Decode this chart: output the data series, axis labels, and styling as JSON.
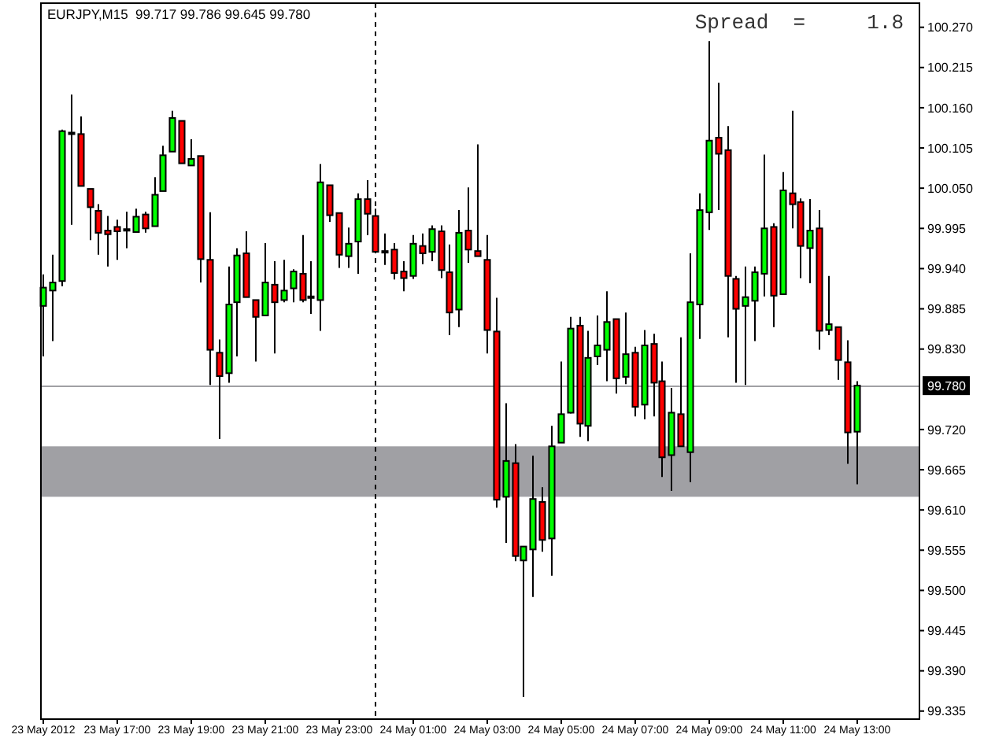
{
  "chart_data": {
    "type": "candlestick",
    "title": "EURJPY,M15  99.717 99.786 99.645 99.780",
    "annotations": [
      "Spread  =     1.8"
    ],
    "x": [
      "2012-05-23T15:00",
      "2012-05-23T15:15",
      "2012-05-23T15:30",
      "2012-05-23T15:45",
      "2012-05-23T16:00",
      "2012-05-23T16:15",
      "2012-05-23T16:30",
      "2012-05-23T16:45",
      "2012-05-23T17:00",
      "2012-05-23T17:15",
      "2012-05-23T17:30",
      "2012-05-23T17:45",
      "2012-05-23T18:00",
      "2012-05-23T18:15",
      "2012-05-23T18:30",
      "2012-05-23T18:45",
      "2012-05-23T19:00",
      "2012-05-23T19:15",
      "2012-05-23T19:30",
      "2012-05-23T19:45",
      "2012-05-23T20:00",
      "2012-05-23T20:15",
      "2012-05-23T20:30",
      "2012-05-23T20:45",
      "2012-05-23T21:00",
      "2012-05-23T21:15",
      "2012-05-23T21:30",
      "2012-05-23T21:45",
      "2012-05-23T22:00",
      "2012-05-23T22:15",
      "2012-05-23T22:30",
      "2012-05-23T22:45",
      "2012-05-23T23:00",
      "2012-05-23T23:15",
      "2012-05-23T23:30",
      "2012-05-23T23:45",
      "2012-05-24T00:00",
      "2012-05-24T00:15",
      "2012-05-24T00:30",
      "2012-05-24T00:45",
      "2012-05-24T01:00",
      "2012-05-24T01:15",
      "2012-05-24T01:30",
      "2012-05-24T01:45",
      "2012-05-24T02:00",
      "2012-05-24T02:15",
      "2012-05-24T02:30",
      "2012-05-24T02:45",
      "2012-05-24T03:00",
      "2012-05-24T03:15",
      "2012-05-24T03:30",
      "2012-05-24T03:45",
      "2012-05-24T04:00",
      "2012-05-24T04:15",
      "2012-05-24T04:30",
      "2012-05-24T04:45",
      "2012-05-24T05:00",
      "2012-05-24T05:15",
      "2012-05-24T05:30",
      "2012-05-24T05:45",
      "2012-05-24T06:00",
      "2012-05-24T06:15",
      "2012-05-24T06:30",
      "2012-05-24T06:45",
      "2012-05-24T07:00",
      "2012-05-24T07:15",
      "2012-05-24T07:30",
      "2012-05-24T07:45",
      "2012-05-24T08:00",
      "2012-05-24T08:15",
      "2012-05-24T08:30",
      "2012-05-24T08:45",
      "2012-05-24T09:00",
      "2012-05-24T09:15",
      "2012-05-24T09:30",
      "2012-05-24T09:45",
      "2012-05-24T10:00",
      "2012-05-24T10:15",
      "2012-05-24T10:30",
      "2012-05-24T10:45",
      "2012-05-24T11:00",
      "2012-05-24T11:15",
      "2012-05-24T11:30",
      "2012-05-24T11:45",
      "2012-05-24T12:00",
      "2012-05-24T12:15",
      "2012-05-24T12:30",
      "2012-05-24T12:45",
      "2012-05-24T13:00"
    ],
    "ohlc": [
      [
        99.889,
        99.932,
        99.82,
        99.914
      ],
      [
        99.91,
        99.959,
        99.841,
        99.921
      ],
      [
        99.923,
        100.13,
        99.916,
        100.128
      ],
      [
        100.126,
        100.178,
        100.0,
        100.126
      ],
      [
        100.124,
        100.148,
        100.053,
        100.053
      ],
      [
        100.049,
        100.049,
        99.979,
        100.024
      ],
      [
        100.019,
        100.028,
        99.959,
        99.989
      ],
      [
        99.992,
        100.012,
        99.943,
        99.987
      ],
      [
        99.997,
        100.007,
        99.952,
        99.991
      ],
      [
        99.994,
        100.018,
        99.968,
        99.994
      ],
      [
        99.99,
        100.022,
        99.99,
        100.011
      ],
      [
        100.014,
        100.018,
        99.989,
        99.995
      ],
      [
        99.998,
        100.065,
        99.998,
        100.041
      ],
      [
        100.046,
        100.108,
        100.046,
        100.095
      ],
      [
        100.1,
        100.156,
        100.1,
        100.146
      ],
      [
        100.142,
        100.142,
        100.084,
        100.084
      ],
      [
        100.081,
        100.117,
        100.081,
        100.09
      ],
      [
        100.094,
        100.094,
        99.921,
        99.953
      ],
      [
        99.952,
        100.017,
        99.781,
        99.829
      ],
      [
        99.825,
        99.843,
        99.707,
        99.793
      ],
      [
        99.797,
        99.943,
        99.784,
        99.891
      ],
      [
        99.894,
        99.968,
        99.82,
        99.958
      ],
      [
        99.961,
        99.991,
        99.901,
        99.901
      ],
      [
        99.897,
        99.897,
        99.813,
        99.874
      ],
      [
        99.876,
        99.975,
        99.876,
        99.921
      ],
      [
        99.918,
        99.95,
        99.824,
        99.894
      ],
      [
        99.897,
        99.952,
        99.894,
        99.91
      ],
      [
        99.913,
        99.939,
        99.894,
        99.936
      ],
      [
        99.933,
        99.986,
        99.894,
        99.897
      ],
      [
        99.902,
        99.95,
        99.878,
        99.902
      ],
      [
        99.897,
        100.083,
        99.855,
        100.058
      ],
      [
        100.054,
        100.054,
        100.004,
        100.013
      ],
      [
        100.016,
        100.016,
        99.941,
        99.959
      ],
      [
        99.957,
        99.996,
        99.941,
        99.974
      ],
      [
        99.977,
        100.043,
        99.933,
        100.035
      ],
      [
        100.035,
        100.061,
        99.986,
        100.015
      ],
      [
        100.012,
        100.022,
        99.963,
        99.963
      ],
      [
        99.964,
        99.988,
        99.945,
        99.964
      ],
      [
        99.966,
        99.975,
        99.925,
        99.934
      ],
      [
        99.936,
        99.95,
        99.909,
        99.927
      ],
      [
        99.93,
        99.986,
        99.926,
        99.974
      ],
      [
        99.971,
        99.988,
        99.946,
        99.961
      ],
      [
        99.963,
        99.999,
        99.95,
        99.994
      ],
      [
        99.991,
        99.999,
        99.927,
        99.938
      ],
      [
        99.935,
        99.973,
        99.849,
        99.88
      ],
      [
        99.884,
        100.02,
        99.86,
        99.989
      ],
      [
        99.992,
        100.051,
        99.948,
        99.966
      ],
      [
        99.964,
        100.11,
        99.957,
        99.957
      ],
      [
        99.952,
        99.986,
        99.824,
        99.856
      ],
      [
        99.854,
        99.9,
        99.613,
        99.624
      ],
      [
        99.628,
        99.756,
        99.565,
        99.677
      ],
      [
        99.674,
        99.7,
        99.54,
        99.547
      ],
      [
        99.541,
        99.56,
        99.354,
        99.56
      ],
      [
        99.556,
        99.684,
        99.491,
        99.625
      ],
      [
        99.621,
        99.641,
        99.553,
        99.569
      ],
      [
        99.571,
        99.725,
        99.52,
        99.697
      ],
      [
        99.702,
        99.813,
        99.702,
        99.741
      ],
      [
        99.743,
        99.874,
        99.742,
        99.858
      ],
      [
        99.862,
        99.874,
        99.71,
        99.728
      ],
      [
        99.725,
        99.855,
        99.704,
        99.818
      ],
      [
        99.82,
        99.876,
        99.808,
        99.835
      ],
      [
        99.829,
        99.909,
        99.786,
        99.867
      ],
      [
        99.871,
        99.871,
        99.769,
        99.79
      ],
      [
        99.792,
        99.88,
        99.782,
        99.823
      ],
      [
        99.825,
        99.833,
        99.738,
        99.751
      ],
      [
        99.754,
        99.856,
        99.734,
        99.835
      ],
      [
        99.837,
        99.851,
        99.738,
        99.784
      ],
      [
        99.786,
        99.813,
        99.655,
        99.682
      ],
      [
        99.685,
        99.777,
        99.636,
        99.743
      ],
      [
        99.741,
        99.846,
        99.697,
        99.697
      ],
      [
        99.689,
        99.961,
        99.648,
        99.894
      ],
      [
        99.891,
        100.043,
        99.844,
        100.02
      ],
      [
        100.017,
        100.251,
        99.993,
        100.115
      ],
      [
        100.119,
        100.194,
        100.02,
        100.097
      ],
      [
        100.102,
        100.135,
        99.846,
        99.93
      ],
      [
        99.926,
        99.93,
        99.784,
        99.885
      ],
      [
        99.889,
        99.943,
        99.781,
        99.901
      ],
      [
        99.896,
        99.943,
        99.841,
        99.935
      ],
      [
        99.933,
        100.096,
        99.902,
        99.995
      ],
      [
        99.997,
        100.002,
        99.86,
        99.903
      ],
      [
        99.905,
        100.072,
        99.905,
        100.047
      ],
      [
        100.043,
        100.156,
        99.995,
        100.028
      ],
      [
        100.031,
        100.036,
        99.927,
        99.971
      ],
      [
        99.968,
        100.035,
        99.92,
        99.992
      ],
      [
        99.995,
        100.02,
        99.829,
        99.855
      ],
      [
        99.856,
        99.93,
        99.849,
        99.864
      ],
      [
        99.86,
        99.86,
        99.788,
        99.815
      ],
      [
        99.812,
        99.842,
        99.673,
        99.716
      ],
      [
        99.717,
        99.786,
        99.645,
        99.78
      ]
    ],
    "xlim": [
      "2012-05-23T14:57",
      "2012-05-24T14:43"
    ],
    "xticks": [
      {
        "value": "2012-05-23T15:00",
        "label": "23 May 2012"
      },
      {
        "value": "2012-05-23T17:00",
        "label": "23 May 17:00"
      },
      {
        "value": "2012-05-23T19:00",
        "label": "23 May 19:00"
      },
      {
        "value": "2012-05-23T21:00",
        "label": "23 May 21:00"
      },
      {
        "value": "2012-05-23T23:00",
        "label": "23 May 23:00"
      },
      {
        "value": "2012-05-24T01:00",
        "label": "24 May 01:00"
      },
      {
        "value": "2012-05-24T03:00",
        "label": "24 May 03:00"
      },
      {
        "value": "2012-05-24T05:00",
        "label": "24 May 05:00"
      },
      {
        "value": "2012-05-24T07:00",
        "label": "24 May 07:00"
      },
      {
        "value": "2012-05-24T09:00",
        "label": "24 May 09:00"
      },
      {
        "value": "2012-05-24T11:00",
        "label": "24 May 11:00"
      },
      {
        "value": "2012-05-24T13:00",
        "label": "24 May 13:00"
      }
    ],
    "ylim": [
      99.324,
      100.303
    ],
    "yticks": [
      {
        "value": 100.27,
        "label": "100.270"
      },
      100.215,
      {
        "value": 100.16,
        "label": "100.160"
      },
      100.105,
      {
        "value": 100.05,
        "label": "100.050"
      },
      99.995,
      {
        "value": 99.94,
        "label": "99.940"
      },
      99.885,
      {
        "value": 99.83,
        "label": "99.830"
      },
      {
        "value": 99.72,
        "label": "99.720"
      },
      99.665,
      {
        "value": 99.61,
        "label": "99.610"
      },
      99.555,
      {
        "value": 99.5,
        "label": "99.500"
      },
      99.445,
      {
        "value": 99.39,
        "label": "99.390"
      },
      99.335
    ],
    "ref_lines": [
      {
        "axis": "y",
        "value": 99.78,
        "label": "99.780",
        "color": "#a0a0a4",
        "line_style": "solid"
      },
      {
        "axis": "x",
        "value": "2012-05-24T00:00",
        "color": "#000000",
        "line_style": "dashed"
      }
    ],
    "bands": [
      {
        "axis": "y",
        "from": 99.628,
        "to": 99.697,
        "color": "#a0a0a4"
      }
    ],
    "grid": false
  }
}
